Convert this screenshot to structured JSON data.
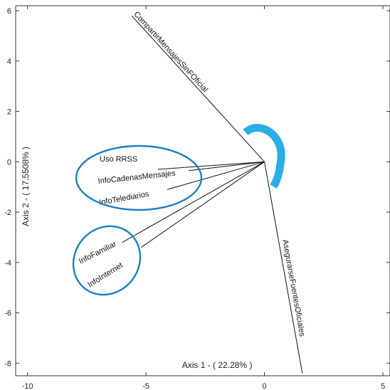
{
  "chart_data": {
    "type": "scatter",
    "subtype": "biplot",
    "xlabel": "Axis 1 - ( 22.28% )",
    "ylabel": "Axis 2 - ( 17.5508% )",
    "xlim": [
      -10.5,
      5.3
    ],
    "ylim": [
      -8.5,
      6.2
    ],
    "xticks": [
      -10,
      -5,
      0,
      5
    ],
    "yticks": [
      -8,
      -6,
      -4,
      -2,
      0,
      2,
      4,
      6
    ],
    "origin": [
      0,
      0
    ],
    "vectors": [
      {
        "name": "CompartirMensajesSinFOficial",
        "x": -5.6,
        "y": 5.8
      },
      {
        "name": "Uso RRSS",
        "x": -4.5,
        "y": -0.3
      },
      {
        "name": "InfoCadenasMensajes",
        "x": -3.2,
        "y": -0.35
      },
      {
        "name": "InfoTelediarios",
        "x": -4.1,
        "y": -1.1
      },
      {
        "name": "InfoFamiliar",
        "x": -6.0,
        "y": -3.2
      },
      {
        "name": "InfoInternet",
        "x": -5.2,
        "y": -3.4
      },
      {
        "name": "AsegurarseFuentesOficiales",
        "x": 1.6,
        "y": -8.4
      }
    ],
    "annotation_color": "#1a7fc4",
    "arc_color": "#2aaee6"
  }
}
